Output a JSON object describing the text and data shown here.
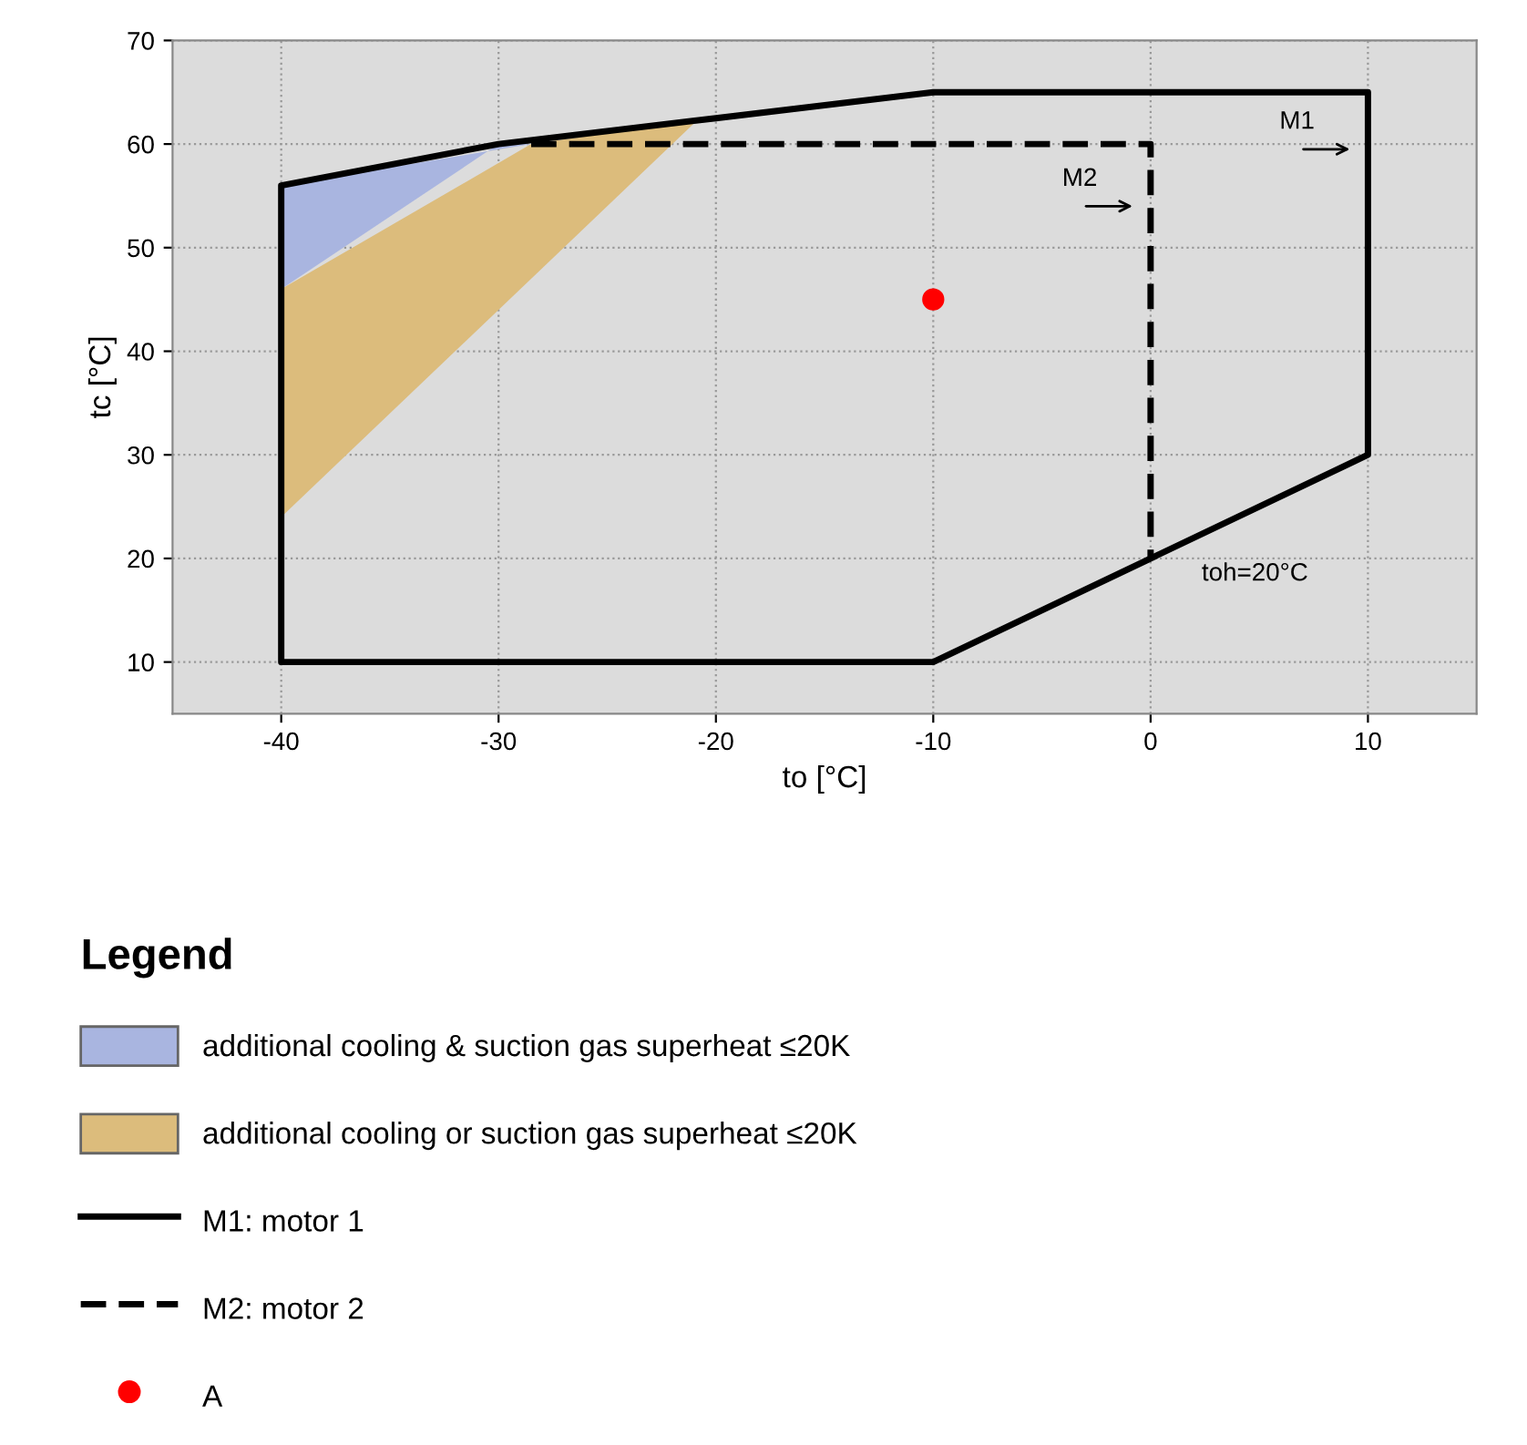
{
  "chart_data": {
    "type": "line",
    "xlabel": "to [°C]",
    "ylabel": "tc [°C]",
    "xlim": [
      -45,
      15
    ],
    "xticks": [
      -40,
      -30,
      -20,
      -10,
      0,
      10
    ],
    "ylim": [
      5,
      70
    ],
    "yticks": [
      10,
      20,
      30,
      40,
      50,
      60,
      70
    ],
    "grid": true,
    "legend": "bottom",
    "legend_title": "Legend",
    "series": [
      {
        "type": "area",
        "name": "additional cooling & suction gas superheat ≤20K",
        "color": "#a9b5e0",
        "x": [
          -40,
          -40,
          -28.5,
          -30
        ],
        "values": [
          46,
          56,
          60,
          60
        ]
      },
      {
        "type": "area",
        "name": "additional cooling or suction gas superheat ≤20K",
        "color": "#dcbc7c",
        "x": [
          -40,
          -40,
          -28.5,
          -20,
          -21
        ],
        "values": [
          24,
          46,
          60,
          62.5,
          62
        ]
      },
      {
        "name": "M1: motor 1",
        "color": "#000000",
        "line_style": "solid",
        "x": [
          -40,
          -40,
          -10,
          10,
          10,
          -10,
          -20,
          -30,
          -40,
          -40
        ],
        "values": [
          30,
          10,
          10,
          30,
          65,
          65,
          62.5,
          60,
          56,
          20
        ]
      },
      {
        "name": "M2: motor 2",
        "color": "#000000",
        "line_style": "dashed",
        "x": [
          -28.5,
          0,
          0
        ],
        "values": [
          60,
          60,
          20
        ]
      },
      {
        "type": "scatter",
        "name": "A",
        "color": "#ff0000",
        "marker": "circle",
        "x": [
          -10
        ],
        "values": [
          45
        ]
      }
    ],
    "annotations": [
      {
        "text": "M1",
        "x": 10,
        "y": 59.5
      },
      {
        "text": "M2",
        "x": 0,
        "y": 54
      },
      "toh=20°C"
    ]
  }
}
